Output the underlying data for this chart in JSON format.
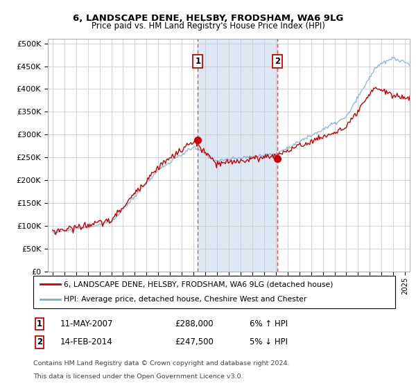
{
  "title": "6, LANDSCAPE DENE, HELSBY, FRODSHAM, WA6 9LG",
  "subtitle": "Price paid vs. HM Land Registry's House Price Index (HPI)",
  "legend_line1": "6, LANDSCAPE DENE, HELSBY, FRODSHAM, WA6 9LG (detached house)",
  "legend_line2": "HPI: Average price, detached house, Cheshire West and Chester",
  "annotation1_date": "11-MAY-2007",
  "annotation1_price": "£288,000",
  "annotation1_hpi": "6% ↑ HPI",
  "annotation2_date": "14-FEB-2014",
  "annotation2_price": "£247,500",
  "annotation2_hpi": "5% ↓ HPI",
  "footnote_line1": "Contains HM Land Registry data © Crown copyright and database right 2024.",
  "footnote_line2": "This data is licensed under the Open Government Licence v3.0.",
  "color_red": "#cc0000",
  "color_blue": "#7ab0d4",
  "color_shading": "#dce9f5",
  "color_annotation_box": "#cc0000",
  "ylim_min": 0,
  "ylim_max": 500000,
  "yticks": [
    0,
    50000,
    100000,
    150000,
    200000,
    250000,
    300000,
    350000,
    400000,
    450000,
    500000
  ],
  "marker1_x": 2007.37,
  "marker1_y": 288000,
  "marker2_x": 2014.12,
  "marker2_y": 247500,
  "vline1_x": 2007.37,
  "vline2_x": 2014.12,
  "xlim_min": 1994.6,
  "xlim_max": 2025.4
}
